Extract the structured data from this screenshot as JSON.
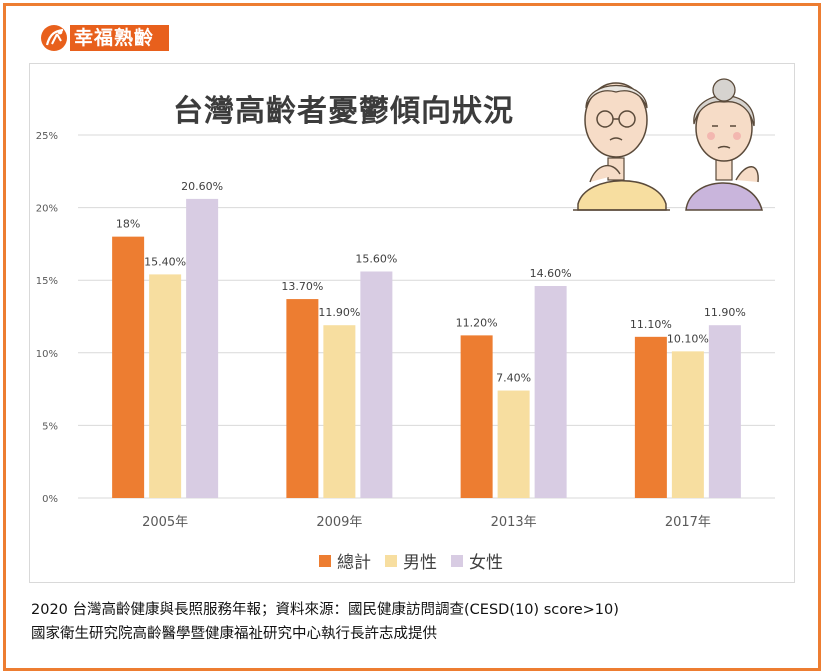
{
  "logo": {
    "text": "幸福熟齡"
  },
  "colors": {
    "total": "#ed7d31",
    "male": "#f7dea0",
    "female": "#d8cce3",
    "frame": "#ed7d31",
    "grid": "#d9d9d9"
  },
  "chart_data": {
    "type": "bar",
    "title": "台灣高齡者憂鬱傾向狀況",
    "categories": [
      "2005年",
      "2009年",
      "2013年",
      "2017年"
    ],
    "series": [
      {
        "name": "總計",
        "values": [
          18,
          13.7,
          11.2,
          11.1
        ],
        "labels": [
          "18%",
          "13.70%",
          "11.20%",
          "11.10%"
        ]
      },
      {
        "name": "男性",
        "values": [
          15.4,
          11.9,
          7.4,
          10.1
        ],
        "labels": [
          "15.40%",
          "11.90%",
          "7.40%",
          "10.10%"
        ]
      },
      {
        "name": "女性",
        "values": [
          20.6,
          15.6,
          14.6,
          11.9
        ],
        "labels": [
          "20.60%",
          "15.60%",
          "14.60%",
          "11.90%"
        ]
      }
    ],
    "ylim": [
      0,
      25
    ],
    "yticks": [
      "0%",
      "5%",
      "10%",
      "15%",
      "20%",
      "25%"
    ],
    "grid": true,
    "legend": "bottom"
  },
  "footer": {
    "line1": "2020 台灣高齡健康與長照服務年報；資料來源：國民健康訪問調查(CESD(10) score>10)",
    "line2": "國家衛生研究院高齡醫學暨健康福祉研究中心執行長許志成提供"
  }
}
